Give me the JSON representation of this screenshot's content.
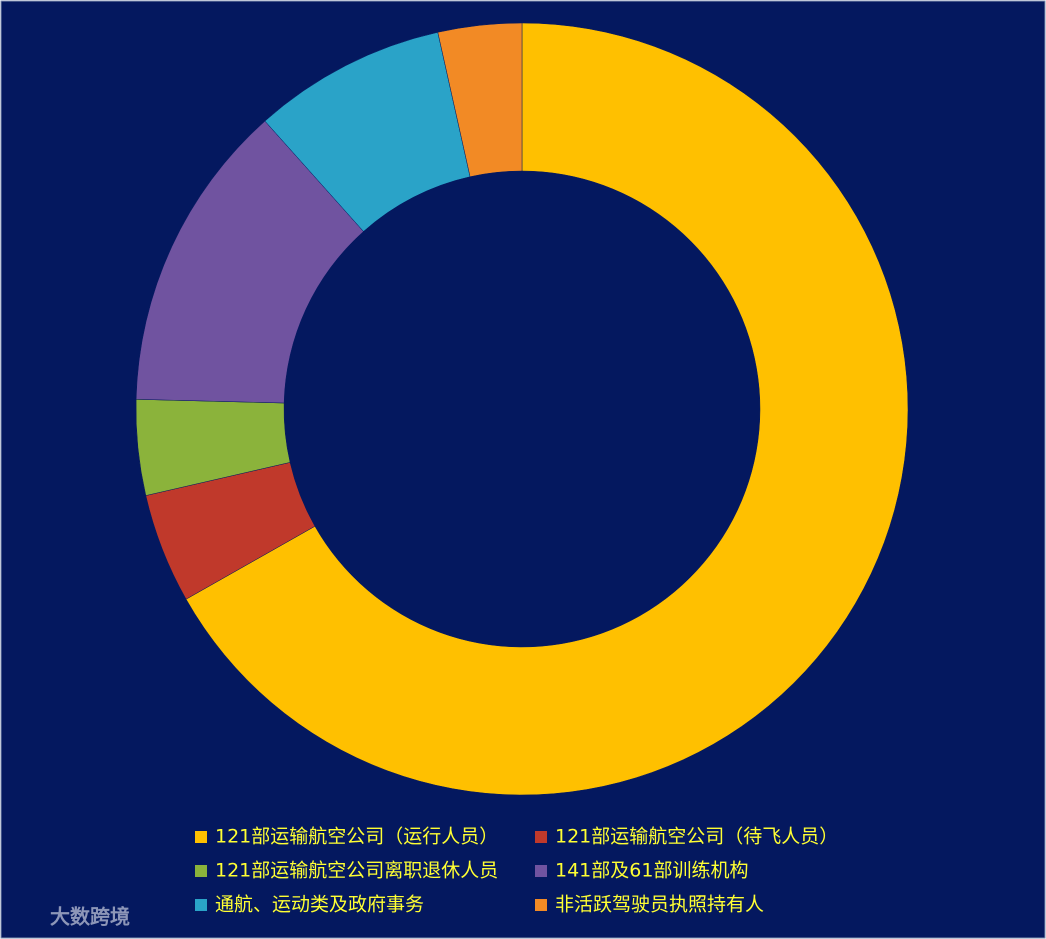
{
  "chart_data": {
    "type": "donut",
    "categories": [
      "121部运输航空公司（运行人员）",
      "121部运输航空公司（待飞人员）",
      "121部运输航空公司离职退休人员",
      "141部及61部训练机构",
      "通航、运动类及政府事务",
      "非活跃驾驶员执照持有人"
    ],
    "values": [
      66.8,
      4.6,
      4.0,
      13.0,
      8.1,
      3.5
    ],
    "colors": [
      "#ffc000",
      "#c0392b",
      "#8bb33b",
      "#7053a0",
      "#2aa3c8",
      "#f28a25"
    ],
    "legend": "bottom"
  },
  "watermark": "大数跨境"
}
